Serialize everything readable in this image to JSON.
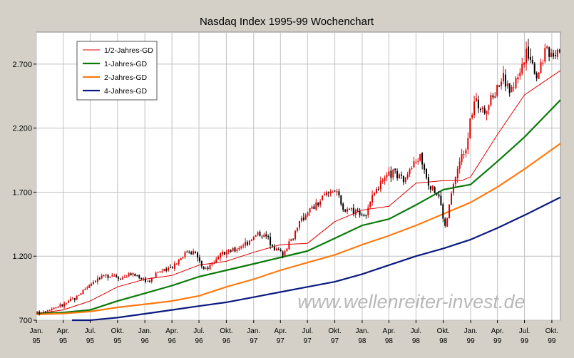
{
  "chart_data": {
    "type": "candlestick",
    "title": "Nasdaq Index 1995-99 Wochenchart",
    "xlabel": "",
    "ylabel": "",
    "ylim": [
      700,
      2950
    ],
    "y_ticks": [
      {
        "value": 700,
        "label": "700"
      },
      {
        "value": 1200,
        "label": "1.200"
      },
      {
        "value": 1700,
        "label": "1.700"
      },
      {
        "value": 2200,
        "label": "2.200"
      },
      {
        "value": 2700,
        "label": "2.700"
      }
    ],
    "x_range": [
      "1995-01-01",
      "1999-10-30"
    ],
    "x_ticks": [
      {
        "date": "1995-01-01",
        "label1": "Jan.",
        "label2": "95"
      },
      {
        "date": "1995-04-01",
        "label1": "Apr.",
        "label2": "95"
      },
      {
        "date": "1995-07-01",
        "label1": "Jul.",
        "label2": "95"
      },
      {
        "date": "1995-10-01",
        "label1": "Okt.",
        "label2": "95"
      },
      {
        "date": "1996-01-01",
        "label1": "Jan.",
        "label2": "96"
      },
      {
        "date": "1996-04-01",
        "label1": "Apr.",
        "label2": "96"
      },
      {
        "date": "1996-07-01",
        "label1": "Jul.",
        "label2": "96"
      },
      {
        "date": "1996-10-01",
        "label1": "Okt.",
        "label2": "96"
      },
      {
        "date": "1997-01-01",
        "label1": "Jan.",
        "label2": "97"
      },
      {
        "date": "1997-04-01",
        "label1": "Apr.",
        "label2": "97"
      },
      {
        "date": "1997-07-01",
        "label1": "Jul.",
        "label2": "97"
      },
      {
        "date": "1997-10-01",
        "label1": "Okt.",
        "label2": "97"
      },
      {
        "date": "1998-01-01",
        "label1": "Jan.",
        "label2": "98"
      },
      {
        "date": "1998-04-01",
        "label1": "Apr.",
        "label2": "98"
      },
      {
        "date": "1998-07-01",
        "label1": "Jul.",
        "label2": "98"
      },
      {
        "date": "1998-10-01",
        "label1": "Okt.",
        "label2": "98"
      },
      {
        "date": "1999-01-01",
        "label1": "Jan.",
        "label2": "99"
      },
      {
        "date": "1999-04-01",
        "label1": "Apr.",
        "label2": "99"
      },
      {
        "date": "1999-07-01",
        "label1": "Jul.",
        "label2": "99"
      },
      {
        "date": "1999-10-01",
        "label1": "Okt.",
        "label2": "99"
      }
    ],
    "price_anchors": [
      [
        "1995-01-01",
        752
      ],
      [
        "1995-02-15",
        790
      ],
      [
        "1995-04-01",
        820
      ],
      [
        "1995-05-15",
        880
      ],
      [
        "1995-06-15",
        950
      ],
      [
        "1995-07-15",
        1010
      ],
      [
        "1995-08-15",
        1040
      ],
      [
        "1995-09-15",
        1060
      ],
      [
        "1995-10-15",
        1030
      ],
      [
        "1995-11-15",
        1060
      ],
      [
        "1995-12-15",
        1040
      ],
      [
        "1996-01-15",
        1000
      ],
      [
        "1996-02-15",
        1080
      ],
      [
        "1996-03-15",
        1090
      ],
      [
        "1996-04-15",
        1150
      ],
      [
        "1996-05-25",
        1250
      ],
      [
        "1996-06-15",
        1230
      ],
      [
        "1996-07-01",
        1180
      ],
      [
        "1996-07-15",
        1080
      ],
      [
        "1996-08-01",
        1120
      ],
      [
        "1996-09-01",
        1180
      ],
      [
        "1996-10-01",
        1230
      ],
      [
        "1996-11-01",
        1250
      ],
      [
        "1996-12-01",
        1300
      ],
      [
        "1997-01-20",
        1380
      ],
      [
        "1997-02-15",
        1350
      ],
      [
        "1997-03-15",
        1260
      ],
      [
        "1997-04-10",
        1220
      ],
      [
        "1997-05-01",
        1300
      ],
      [
        "1997-06-01",
        1450
      ],
      [
        "1997-07-01",
        1550
      ],
      [
        "1997-08-01",
        1600
      ],
      [
        "1997-09-01",
        1680
      ],
      [
        "1997-10-05",
        1740
      ],
      [
        "1997-10-28",
        1550
      ],
      [
        "1997-11-15",
        1580
      ],
      [
        "1997-12-20",
        1550
      ],
      [
        "1998-01-10",
        1510
      ],
      [
        "1998-02-15",
        1700
      ],
      [
        "1998-03-15",
        1790
      ],
      [
        "1998-04-15",
        1860
      ],
      [
        "1998-05-15",
        1800
      ],
      [
        "1998-06-15",
        1880
      ],
      [
        "1998-07-15",
        1990
      ],
      [
        "1998-08-15",
        1760
      ],
      [
        "1998-09-15",
        1680
      ],
      [
        "1998-10-08",
        1420
      ],
      [
        "1998-10-25",
        1650
      ],
      [
        "1998-11-15",
        1870
      ],
      [
        "1998-12-15",
        2060
      ],
      [
        "1999-01-15",
        2420
      ],
      [
        "1999-02-10",
        2330
      ],
      [
        "1999-03-10",
        2410
      ],
      [
        "1999-03-30",
        2520
      ],
      [
        "1999-04-20",
        2600
      ],
      [
        "1999-05-15",
        2480
      ],
      [
        "1999-06-15",
        2650
      ],
      [
        "1999-07-15",
        2800
      ],
      [
        "1999-08-10",
        2600
      ],
      [
        "1999-09-10",
        2820
      ],
      [
        "1999-10-05",
        2780
      ],
      [
        "1999-10-26",
        2840
      ]
    ],
    "series": [
      {
        "name": "1/2-Jahres-GD",
        "color": "#e00000",
        "anchors": [
          [
            "1995-01-01",
            752
          ],
          [
            "1995-04-01",
            780
          ],
          [
            "1995-07-01",
            850
          ],
          [
            "1995-10-01",
            960
          ],
          [
            "1996-01-01",
            1020
          ],
          [
            "1996-04-01",
            1050
          ],
          [
            "1996-07-01",
            1130
          ],
          [
            "1996-10-01",
            1160
          ],
          [
            "1997-01-01",
            1230
          ],
          [
            "1997-04-01",
            1290
          ],
          [
            "1997-07-01",
            1300
          ],
          [
            "1997-10-01",
            1470
          ],
          [
            "1998-01-01",
            1560
          ],
          [
            "1998-04-01",
            1590
          ],
          [
            "1998-07-01",
            1770
          ],
          [
            "1998-10-01",
            1790
          ],
          [
            "1998-12-01",
            1790
          ],
          [
            "1999-01-01",
            1820
          ],
          [
            "1999-04-01",
            2150
          ],
          [
            "1999-07-01",
            2460
          ],
          [
            "1999-10-30",
            2650
          ]
        ]
      },
      {
        "name": "1-Jahres-GD",
        "color": "#0a7a0a",
        "anchors": [
          [
            "1995-01-01",
            752
          ],
          [
            "1995-04-01",
            760
          ],
          [
            "1995-07-01",
            780
          ],
          [
            "1995-10-01",
            850
          ],
          [
            "1996-01-01",
            910
          ],
          [
            "1996-04-01",
            970
          ],
          [
            "1996-07-01",
            1040
          ],
          [
            "1996-10-01",
            1090
          ],
          [
            "1997-01-01",
            1140
          ],
          [
            "1997-04-01",
            1190
          ],
          [
            "1997-07-01",
            1240
          ],
          [
            "1997-10-01",
            1340
          ],
          [
            "1998-01-01",
            1440
          ],
          [
            "1998-04-01",
            1490
          ],
          [
            "1998-07-01",
            1600
          ],
          [
            "1998-10-01",
            1720
          ],
          [
            "1999-01-01",
            1760
          ],
          [
            "1999-04-01",
            1940
          ],
          [
            "1999-07-01",
            2130
          ],
          [
            "1999-10-30",
            2420
          ]
        ]
      },
      {
        "name": "2-Jahres-GD",
        "color": "#ff7a10",
        "anchors": [
          [
            "1995-01-01",
            745
          ],
          [
            "1995-04-01",
            752
          ],
          [
            "1995-07-01",
            768
          ],
          [
            "1995-10-01",
            800
          ],
          [
            "1996-01-01",
            825
          ],
          [
            "1996-04-01",
            850
          ],
          [
            "1996-07-01",
            890
          ],
          [
            "1996-10-01",
            960
          ],
          [
            "1997-01-01",
            1020
          ],
          [
            "1997-04-01",
            1090
          ],
          [
            "1997-07-01",
            1150
          ],
          [
            "1997-10-01",
            1210
          ],
          [
            "1998-01-01",
            1290
          ],
          [
            "1998-04-01",
            1360
          ],
          [
            "1998-07-01",
            1440
          ],
          [
            "1998-10-01",
            1530
          ],
          [
            "1999-01-01",
            1620
          ],
          [
            "1999-04-01",
            1740
          ],
          [
            "1999-07-01",
            1880
          ],
          [
            "1999-10-30",
            2080
          ]
        ]
      },
      {
        "name": "4-Jahres-GD",
        "color": "#0a1a80",
        "anchors": [
          [
            "1995-05-01",
            690
          ],
          [
            "1995-07-01",
            700
          ],
          [
            "1995-10-01",
            720
          ],
          [
            "1996-01-01",
            750
          ],
          [
            "1996-04-01",
            780
          ],
          [
            "1996-07-01",
            810
          ],
          [
            "1996-10-01",
            840
          ],
          [
            "1997-01-01",
            880
          ],
          [
            "1997-04-01",
            920
          ],
          [
            "1997-07-01",
            960
          ],
          [
            "1997-10-01",
            1000
          ],
          [
            "1998-01-01",
            1060
          ],
          [
            "1998-04-01",
            1130
          ],
          [
            "1998-07-01",
            1200
          ],
          [
            "1998-10-01",
            1260
          ],
          [
            "1999-01-01",
            1330
          ],
          [
            "1999-04-01",
            1420
          ],
          [
            "1999-07-01",
            1520
          ],
          [
            "1999-10-30",
            1660
          ]
        ]
      }
    ],
    "legend_position": "top-left",
    "grid": true,
    "watermark": "www.wellenreiter-invest.de"
  },
  "colors": {
    "background": "#d4d0c8",
    "plot_background": "#ffffff",
    "grid": "#c0c0c0",
    "axis": "#000000",
    "up_candle": "#e00000",
    "down_candle": "#000000",
    "watermark": "#b8b8b8"
  }
}
